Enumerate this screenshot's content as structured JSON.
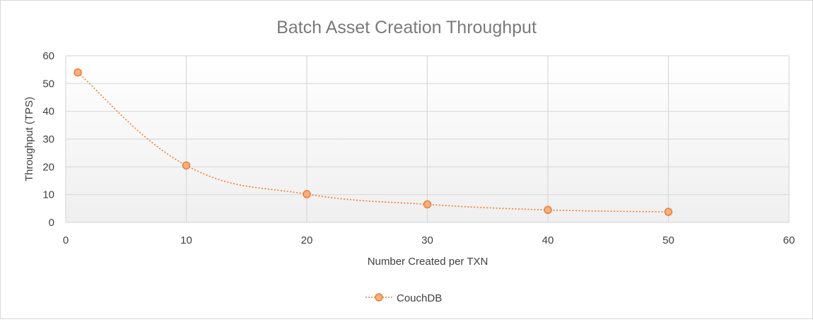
{
  "chart_data": {
    "type": "scatter",
    "title": "Batch Asset Creation Throughput",
    "xlabel": "Number Created per TXN",
    "ylabel": "Throughput (TPS)",
    "xlim": [
      0,
      60
    ],
    "ylim": [
      0,
      60
    ],
    "x_ticks": [
      0,
      10,
      20,
      30,
      40,
      50,
      60
    ],
    "y_ticks": [
      0,
      10,
      20,
      30,
      40,
      50,
      60
    ],
    "grid": true,
    "legend_position": "bottom",
    "line_style": "dotted smoothed",
    "series": [
      {
        "name": "CouchDB",
        "color": "#ed7d31",
        "marker_fill": "#f4b183",
        "x": [
          1,
          10,
          20,
          30,
          40,
          50
        ],
        "y": [
          54,
          20.5,
          10.2,
          6.5,
          4.5,
          3.8
        ]
      }
    ]
  }
}
